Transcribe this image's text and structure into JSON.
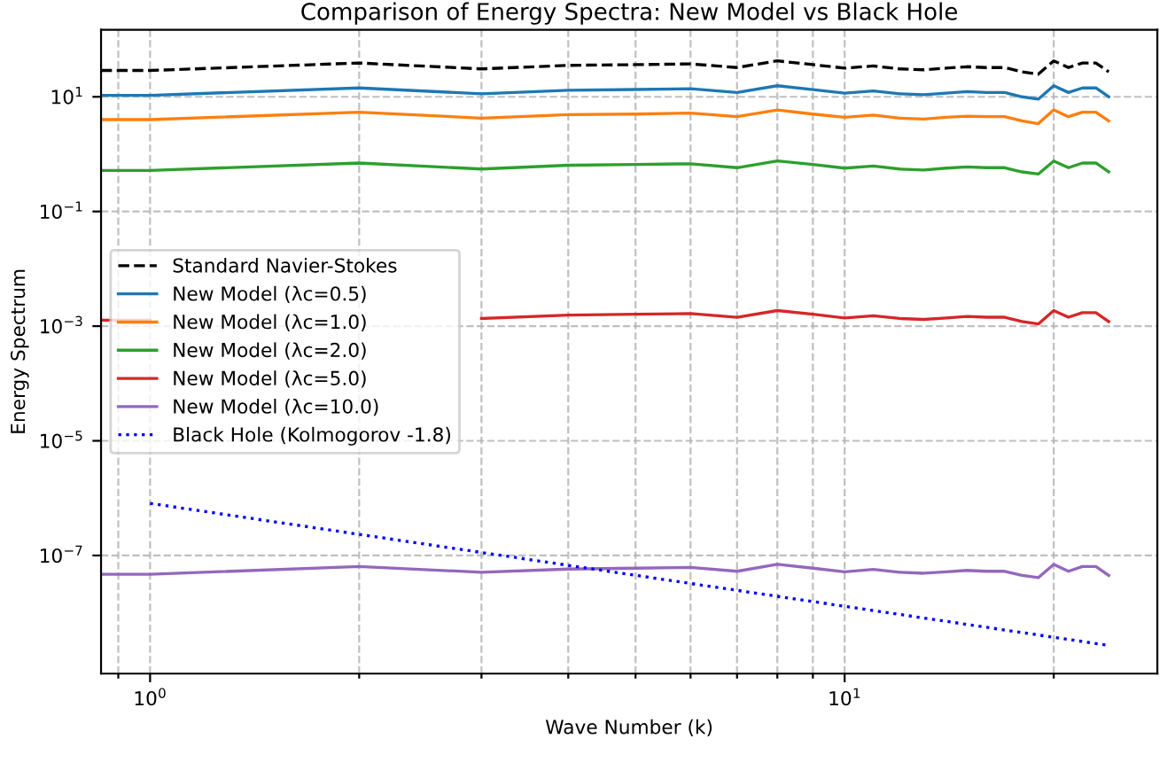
{
  "chart_data": {
    "type": "line",
    "title": "Comparison of Energy Spectra: New Model vs Black Hole",
    "xlabel": "Wave Number (k)",
    "ylabel": "Energy Spectrum",
    "log": "xy",
    "grid": true,
    "legend": "center left",
    "xlim": [
      0.85,
      28.2
    ],
    "ylim": [
      8.7e-10,
      148
    ],
    "xticks": [
      {
        "value": 0.9,
        "label": null
      },
      {
        "value": 1,
        "label": "10$^{0}$"
      },
      {
        "value": 2,
        "label": null
      },
      {
        "value": 3,
        "label": null
      },
      {
        "value": 4,
        "label": null
      },
      {
        "value": 5,
        "label": null
      },
      {
        "value": 6,
        "label": null
      },
      {
        "value": 7,
        "label": null
      },
      {
        "value": 8,
        "label": null
      },
      {
        "value": 9,
        "label": null
      },
      {
        "value": 10,
        "label": "10$^{1}$"
      },
      {
        "value": 20,
        "label": null
      }
    ],
    "yticks": [
      {
        "value": 1e-07,
        "label": "10$^{−7}$"
      },
      {
        "value": 1e-05,
        "label": "10$^{−5}$"
      },
      {
        "value": 0.001,
        "label": "10$^{−3}$"
      },
      {
        "value": 0.1,
        "label": "10$^{−1}$"
      },
      {
        "value": 10,
        "label": "10$^{1}$"
      }
    ],
    "x": [
      0.85,
      1,
      2,
      3,
      4,
      5,
      6,
      7,
      8,
      9,
      10,
      11,
      12,
      13,
      14,
      15,
      16,
      17,
      18,
      19,
      20,
      21,
      22,
      23,
      24
    ],
    "series": [
      {
        "name": "Standard Navier-Stokes",
        "color": "#000000",
        "line_style": "dashed",
        "values": [
          28.8,
          28.8,
          38.9,
          30.7,
          35.4,
          36.4,
          37.5,
          32.4,
          42.4,
          36.4,
          31.6,
          34.5,
          30.7,
          29.6,
          31.6,
          33.5,
          32.4,
          32.4,
          27.2,
          24.8,
          42.4,
          32.4,
          38.9,
          38.9,
          27.2
        ]
      },
      {
        "name": "New Model (λc=0.5)",
        "color": "#1f77b4",
        "line_style": "solid",
        "values": [
          10.6,
          10.6,
          14.3,
          11.3,
          13.0,
          13.4,
          13.8,
          11.9,
          15.6,
          13.4,
          11.6,
          12.7,
          11.3,
          10.9,
          11.6,
          12.3,
          11.9,
          11.9,
          10.0,
          9.1,
          15.6,
          11.9,
          14.3,
          14.3,
          10.0
        ]
      },
      {
        "name": "New Model (λc=1.0)",
        "color": "#ff7f0e",
        "line_style": "solid",
        "values": [
          4.0,
          4.0,
          5.4,
          4.25,
          4.9,
          5.0,
          5.2,
          4.5,
          5.9,
          5.0,
          4.4,
          4.8,
          4.25,
          4.1,
          4.4,
          4.6,
          4.5,
          4.5,
          3.8,
          3.4,
          5.9,
          4.5,
          5.4,
          5.4,
          3.8
        ]
      },
      {
        "name": "New Model (λc=2.0)",
        "color": "#2ca02c",
        "line_style": "solid",
        "values": [
          0.52,
          0.52,
          0.7,
          0.55,
          0.64,
          0.66,
          0.68,
          0.58,
          0.76,
          0.66,
          0.57,
          0.62,
          0.55,
          0.53,
          0.57,
          0.6,
          0.58,
          0.58,
          0.49,
          0.45,
          0.76,
          0.58,
          0.7,
          0.7,
          0.49
        ]
      },
      {
        "name": "New Model (λc=5.0)",
        "color": "#d62728",
        "line_style": "solid",
        "values": [
          0.00127,
          0.00127,
          null,
          0.00136,
          0.00156,
          0.00161,
          0.00166,
          0.00143,
          0.00187,
          0.00161,
          0.00139,
          0.00152,
          0.00136,
          0.00131,
          0.00139,
          0.00148,
          0.00143,
          0.00143,
          0.0012,
          0.00109,
          0.00187,
          0.00143,
          0.00172,
          0.00172,
          0.0012
        ]
      },
      {
        "name": "New Model (λc=10.0)",
        "color": "#9467bd",
        "line_style": "solid",
        "values": [
          4.7e-08,
          4.7e-08,
          6.4e-08,
          5.1e-08,
          5.8e-08,
          6e-08,
          6.2e-08,
          5.3e-08,
          7e-08,
          6e-08,
          5.2e-08,
          5.7e-08,
          5.1e-08,
          4.9e-08,
          5.2e-08,
          5.5e-08,
          5.3e-08,
          5.3e-08,
          4.5e-08,
          4.1e-08,
          7e-08,
          5.3e-08,
          6.4e-08,
          6.4e-08,
          4.5e-08
        ]
      },
      {
        "name": "Black Hole (Kolmogorov -1.8)",
        "color": "#0000ff",
        "line_style": "dotted",
        "x": [
          1,
          24
        ],
        "values": [
          8.1e-07,
          2.7e-09
        ]
      }
    ]
  }
}
